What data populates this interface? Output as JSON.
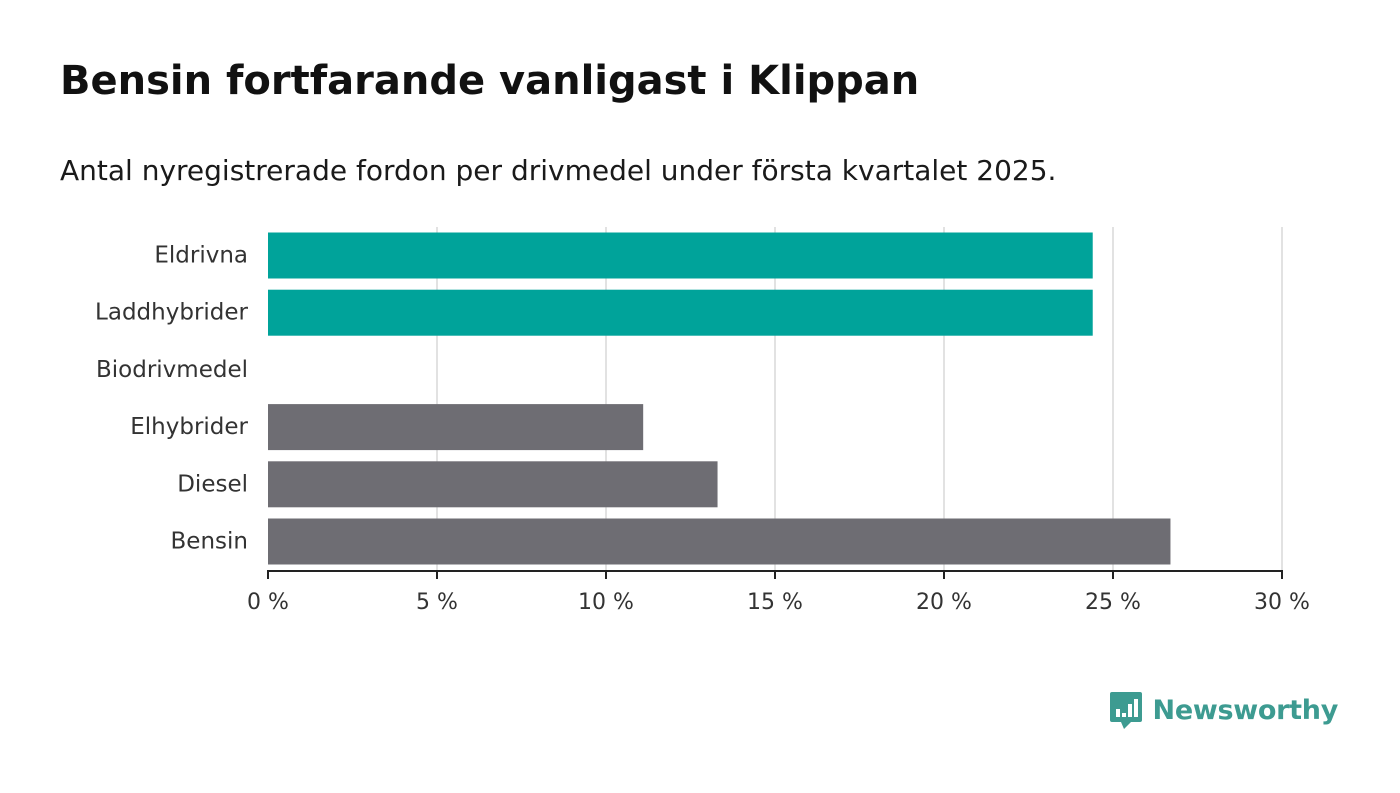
{
  "header": {
    "title": "Bensin fortfarande vanligast i Klippan",
    "subtitle": "Antal nyregistrerade fordon per drivmedel under första kvartalet 2025."
  },
  "brand": {
    "name": "Newsworthy",
    "icon": "newsworthy-logo-icon",
    "color": "#3d9b91"
  },
  "chart_data": {
    "type": "bar",
    "orientation": "horizontal",
    "categories": [
      "Eldrivna",
      "Laddhybrider",
      "Biodrivmedel",
      "Elhybrider",
      "Diesel",
      "Bensin"
    ],
    "values": [
      24.4,
      24.4,
      0,
      11.1,
      13.3,
      26.7
    ],
    "bar_colors": [
      "#00a39a",
      "#00a39a",
      "#00a39a",
      "#6e6d73",
      "#6e6d73",
      "#6e6d73"
    ],
    "xlim": [
      0,
      30
    ],
    "x_ticks": [
      0,
      5,
      10,
      15,
      20,
      25,
      30
    ],
    "x_tick_labels": [
      "0 %",
      "5 %",
      "10 %",
      "15 %",
      "20 %",
      "25 %",
      "30 %"
    ],
    "xlabel": "",
    "ylabel": "",
    "grid": true,
    "legend": "none"
  }
}
